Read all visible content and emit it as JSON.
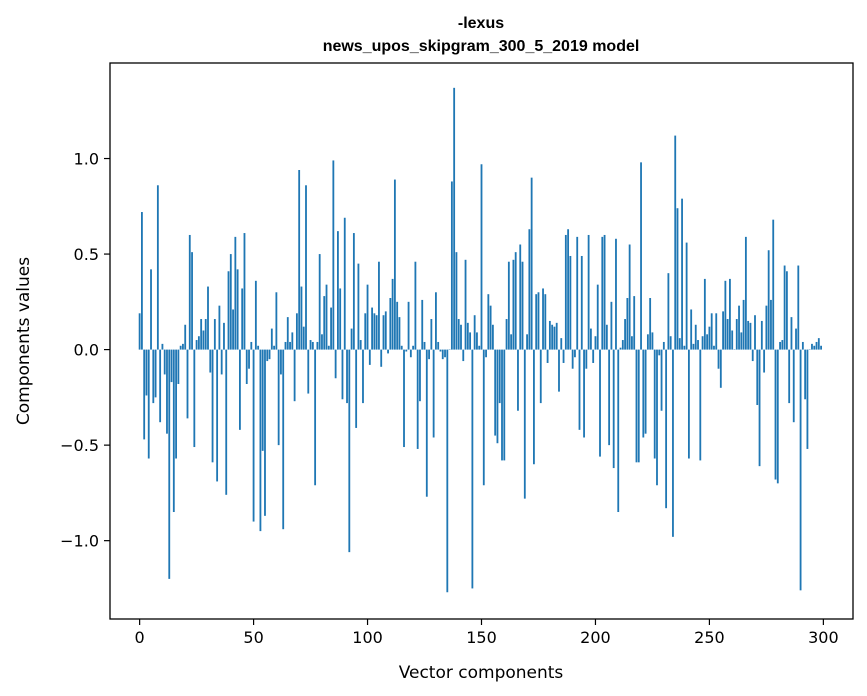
{
  "chart_data": {
    "type": "bar",
    "title": [
      "-lexus",
      "news_upos_skipgram_300_5_2019 model"
    ],
    "xlabel": "Vector components",
    "ylabel": "Components values",
    "xlim": [
      -13,
      313
    ],
    "ylim": [
      -1.41,
      1.5
    ],
    "xticks": [
      0,
      50,
      100,
      150,
      200,
      250,
      300
    ],
    "yticks": [
      -1.0,
      -0.5,
      0.0,
      0.5,
      1.0
    ],
    "ytick_labels": [
      "−1.0",
      "−0.5",
      "0.0",
      "0.5",
      "1.0"
    ],
    "grid": false,
    "bar_color": "#1f77b4",
    "values": [
      0.19,
      0.72,
      -0.47,
      -0.24,
      -0.57,
      0.42,
      -0.28,
      -0.25,
      0.86,
      -0.38,
      0.03,
      -0.13,
      -0.44,
      -1.2,
      -0.17,
      -0.85,
      -0.57,
      -0.18,
      0.02,
      0.03,
      0.13,
      -0.36,
      0.6,
      0.51,
      -0.51,
      0.05,
      0.07,
      0.16,
      0.1,
      0.16,
      0.33,
      -0.12,
      -0.59,
      0.16,
      -0.69,
      0.23,
      -0.13,
      0.14,
      -0.76,
      0.41,
      0.5,
      0.21,
      0.59,
      0.42,
      -0.42,
      0.32,
      0.61,
      -0.18,
      -0.1,
      0.04,
      -0.9,
      0.36,
      0.02,
      -0.95,
      -0.53,
      -0.87,
      -0.06,
      -0.05,
      0.11,
      0.02,
      0.3,
      -0.5,
      -0.13,
      -0.94,
      0.04,
      0.17,
      0.04,
      0.09,
      -0.27,
      0.19,
      0.94,
      0.33,
      0.12,
      0.86,
      -0.23,
      0.05,
      0.04,
      -0.71,
      0.04,
      0.5,
      0.08,
      0.28,
      0.34,
      0.02,
      0.22,
      0.99,
      -0.15,
      0.62,
      0.32,
      -0.26,
      0.69,
      -0.28,
      -1.06,
      0.11,
      0.61,
      -0.41,
      0.45,
      0.05,
      -0.28,
      0.19,
      0.34,
      -0.08,
      0.22,
      0.19,
      0.18,
      0.46,
      -0.09,
      0.18,
      0.2,
      -0.02,
      0.27,
      0.37,
      0.89,
      0.25,
      0.17,
      0.02,
      -0.51,
      -0.01,
      0.25,
      -0.04,
      0.02,
      0.46,
      -0.52,
      -0.27,
      0.26,
      0.04,
      -0.77,
      -0.05,
      0.16,
      -0.46,
      0.3,
      0.04,
      -0.01,
      -0.05,
      -0.04,
      -1.27,
      0.0,
      0.88,
      1.37,
      0.51,
      0.16,
      0.13,
      -0.06,
      0.47,
      0.14,
      0.09,
      -1.25,
      0.18,
      0.09,
      0.02,
      0.97,
      -0.71,
      -0.04,
      0.29,
      0.23,
      0.13,
      -0.45,
      -0.49,
      -0.28,
      -0.58,
      -0.58,
      0.16,
      0.46,
      0.08,
      0.47,
      0.51,
      -0.32,
      0.55,
      0.46,
      -0.78,
      0.08,
      0.63,
      0.9,
      -0.6,
      0.29,
      0.3,
      -0.28,
      0.32,
      0.29,
      -0.07,
      0.15,
      0.13,
      0.12,
      0.14,
      -0.22,
      0.06,
      -0.07,
      0.6,
      0.63,
      0.49,
      -0.1,
      -0.04,
      0.59,
      -0.42,
      0.49,
      -0.46,
      -0.1,
      0.6,
      0.11,
      -0.07,
      0.07,
      0.34,
      -0.56,
      0.59,
      0.6,
      0.13,
      -0.5,
      0.25,
      -0.62,
      0.58,
      -0.85,
      0.01,
      0.05,
      0.16,
      0.27,
      0.55,
      0.07,
      0.28,
      -0.59,
      -0.59,
      0.98,
      -0.46,
      -0.44,
      0.08,
      0.27,
      0.09,
      -0.57,
      -0.71,
      -0.03,
      -0.32,
      0.04,
      -0.83,
      0.4,
      0.07,
      -0.98,
      1.12,
      0.74,
      0.06,
      0.79,
      0.02,
      0.56,
      -0.57,
      0.21,
      0.03,
      0.13,
      0.05,
      -0.58,
      0.07,
      0.37,
      0.08,
      0.12,
      0.19,
      0.02,
      0.19,
      -0.1,
      -0.2,
      0.2,
      0.36,
      0.16,
      0.37,
      0.1,
      0.0,
      0.16,
      0.23,
      0.09,
      0.26,
      0.59,
      0.15,
      0.14,
      -0.06,
      0.18,
      -0.29,
      -0.61,
      0.15,
      -0.12,
      0.23,
      0.52,
      0.26,
      0.68,
      -0.68,
      -0.7,
      0.04,
      0.05,
      0.44,
      0.41,
      -0.28,
      0.17,
      -0.38,
      0.11,
      0.44,
      -1.26,
      0.04,
      -0.26,
      -0.52,
      0.0,
      0.03,
      0.02,
      0.04,
      0.06,
      0.02
    ]
  }
}
